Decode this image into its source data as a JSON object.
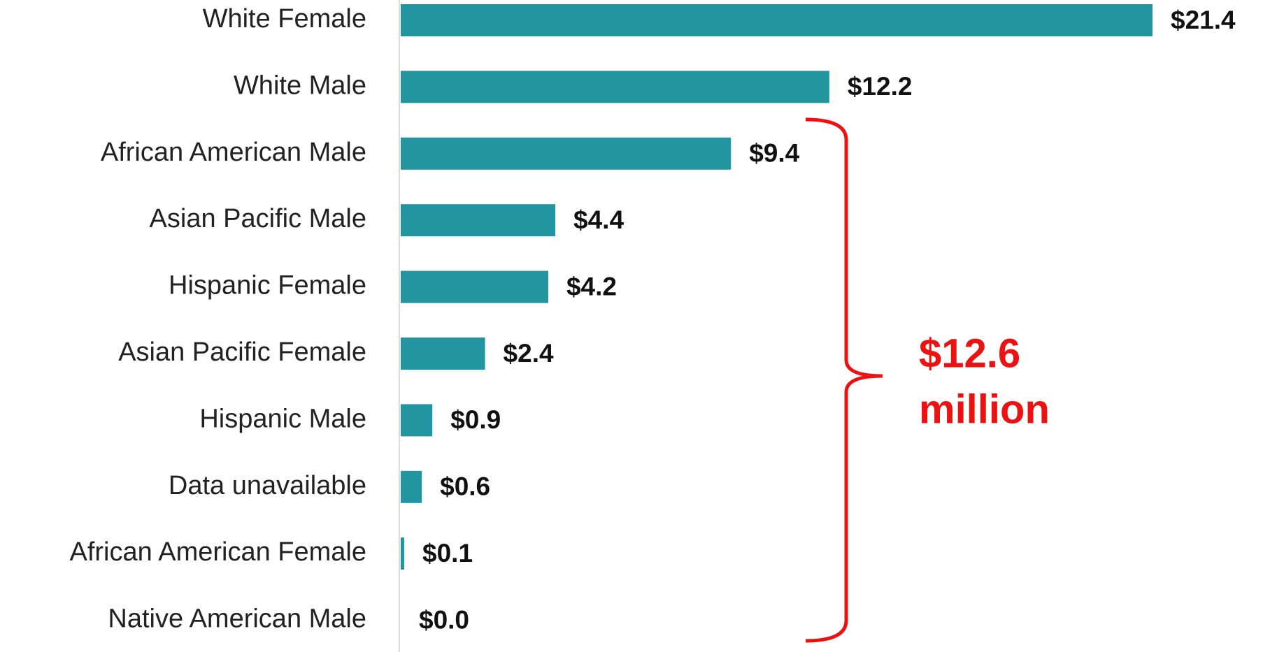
{
  "chart_data": {
    "type": "bar",
    "orientation": "horizontal",
    "categories": [
      "White Female",
      "White Male",
      "African American Male",
      "Asian Pacific Male",
      "Hispanic Female",
      "Asian Pacific Female",
      "Hispanic Male",
      "Data unavailable",
      "African American Female",
      "Native American Male"
    ],
    "values": [
      21.4,
      12.2,
      9.4,
      4.4,
      4.2,
      2.4,
      0.9,
      0.6,
      0.1,
      0.0
    ],
    "value_labels": [
      "$21.4",
      "$12.2",
      "$9.4",
      "$4.4",
      "$4.2",
      "$2.4",
      "$0.9",
      "$0.6",
      "$0.1",
      "$0.0"
    ],
    "color": "#2196a0",
    "annotation": [
      "$12.6",
      "million"
    ],
    "annotation_color": "#ee1111"
  }
}
